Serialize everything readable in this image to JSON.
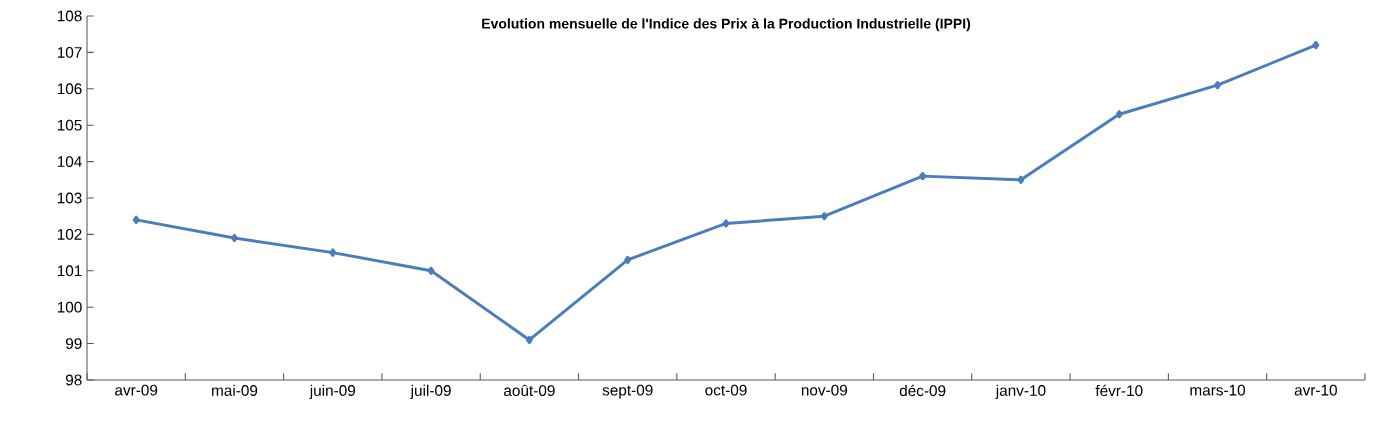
{
  "chart_data": {
    "type": "line",
    "title": "Evolution mensuelle de l'Indice des Prix à la Production Industrielle (IPPI)",
    "categories": [
      "avr-09",
      "mai-09",
      "juin-09",
      "juil-09",
      "août-09",
      "sept-09",
      "oct-09",
      "nov-09",
      "déc-09",
      "janv-10",
      "févr-10",
      "mars-10",
      "avr-10"
    ],
    "series": [
      {
        "color": "#4a7ebb",
        "values": [
          102.4,
          101.9,
          101.5,
          101.0,
          99.1,
          101.3,
          102.3,
          102.5,
          103.6,
          103.5,
          105.3,
          106.1,
          107.2
        ]
      }
    ],
    "ylim": [
      98,
      108
    ],
    "yticks": [
      98,
      99,
      100,
      101,
      102,
      103,
      104,
      105,
      106,
      107,
      108
    ],
    "marker": "diamond",
    "line_style": "solid",
    "grid": false,
    "legend": false
  }
}
